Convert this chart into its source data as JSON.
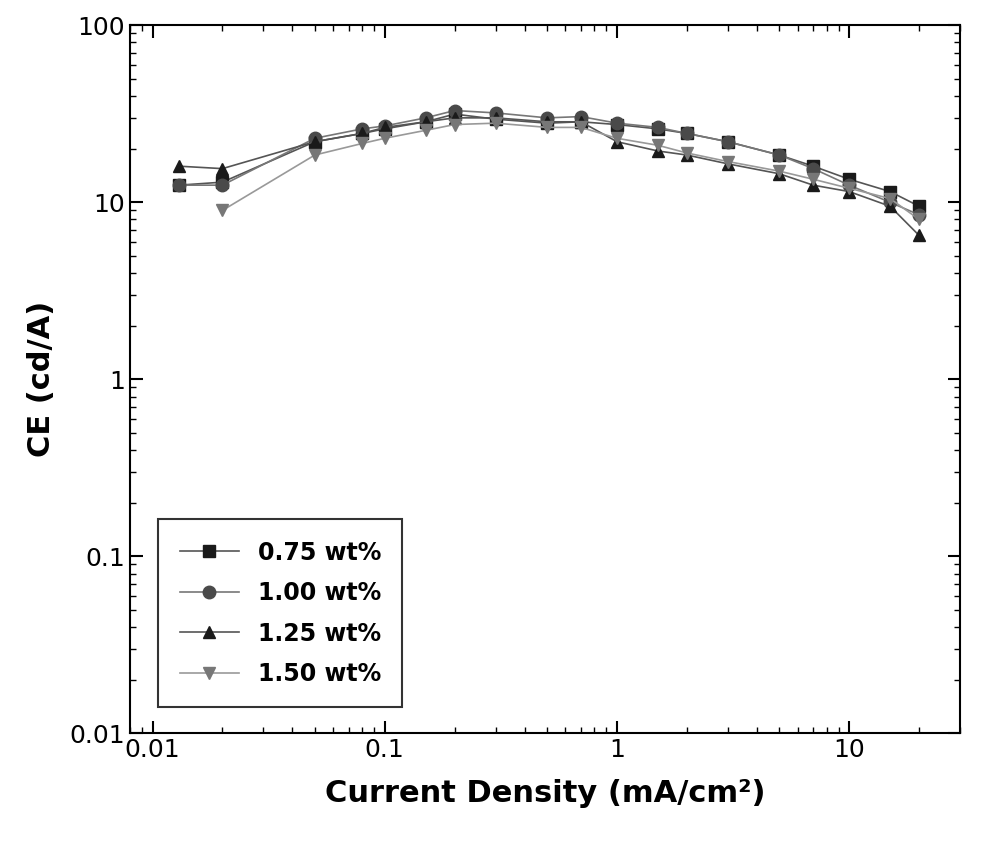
{
  "series": [
    {
      "label": "0.75 wt%",
      "color": "#1a1a1a",
      "marker": "s",
      "markersize": 8,
      "linecolor": "#555555",
      "x": [
        0.013,
        0.02,
        0.05,
        0.08,
        0.1,
        0.15,
        0.2,
        0.3,
        0.5,
        0.7,
        1.0,
        1.5,
        2.0,
        3.0,
        5.0,
        7.0,
        10.0,
        15.0,
        20.0
      ],
      "y": [
        12.5,
        13.0,
        22.0,
        24.5,
        26.0,
        28.5,
        31.5,
        29.5,
        28.0,
        28.5,
        27.5,
        26.0,
        24.5,
        22.0,
        18.5,
        16.0,
        13.5,
        11.5,
        9.5
      ]
    },
    {
      "label": "1.00 wt%",
      "color": "#4a4a4a",
      "marker": "o",
      "markersize": 9,
      "linecolor": "#777777",
      "x": [
        0.013,
        0.02,
        0.05,
        0.08,
        0.1,
        0.15,
        0.2,
        0.3,
        0.5,
        0.7,
        1.0,
        1.5,
        2.0,
        3.0,
        5.0,
        7.0,
        10.0,
        15.0,
        20.0
      ],
      "y": [
        12.5,
        12.5,
        23.0,
        26.0,
        27.0,
        30.0,
        33.0,
        32.0,
        30.0,
        30.5,
        28.0,
        26.5,
        24.5,
        22.0,
        18.5,
        15.5,
        12.5,
        10.0,
        8.5
      ]
    },
    {
      "label": "1.25 wt%",
      "color": "#1a1a1a",
      "marker": "^",
      "markersize": 9,
      "linecolor": "#555555",
      "x": [
        0.013,
        0.02,
        0.05,
        0.08,
        0.1,
        0.15,
        0.2,
        0.3,
        0.5,
        0.7,
        1.0,
        1.5,
        2.0,
        3.0,
        5.0,
        7.0,
        10.0,
        15.0,
        20.0
      ],
      "y": [
        16.0,
        15.5,
        22.0,
        24.5,
        26.5,
        28.5,
        30.0,
        30.0,
        28.5,
        28.5,
        22.0,
        19.5,
        18.5,
        16.5,
        14.5,
        12.5,
        11.5,
        9.5,
        6.5
      ]
    },
    {
      "label": "1.50 wt%",
      "color": "#777777",
      "marker": "v",
      "markersize": 9,
      "linecolor": "#999999",
      "x": [
        0.02,
        0.05,
        0.08,
        0.1,
        0.15,
        0.2,
        0.3,
        0.5,
        0.7,
        1.0,
        1.5,
        2.0,
        3.0,
        5.0,
        7.0,
        10.0,
        15.0,
        20.0
      ],
      "y": [
        9.0,
        18.5,
        21.5,
        23.0,
        25.5,
        27.5,
        28.0,
        26.5,
        26.5,
        23.0,
        21.0,
        19.0,
        17.0,
        15.0,
        13.5,
        12.0,
        10.5,
        8.0
      ]
    }
  ],
  "xlim": [
    0.008,
    30
  ],
  "ylim": [
    0.01,
    100
  ],
  "xlabel": "Current Density (mA/cm²)",
  "ylabel": "CE (cd/A)",
  "legend_loc": "lower left",
  "background_color": "#ffffff",
  "linewidth": 1.2,
  "tick_labelsize": 18,
  "axis_labelsize": 22
}
